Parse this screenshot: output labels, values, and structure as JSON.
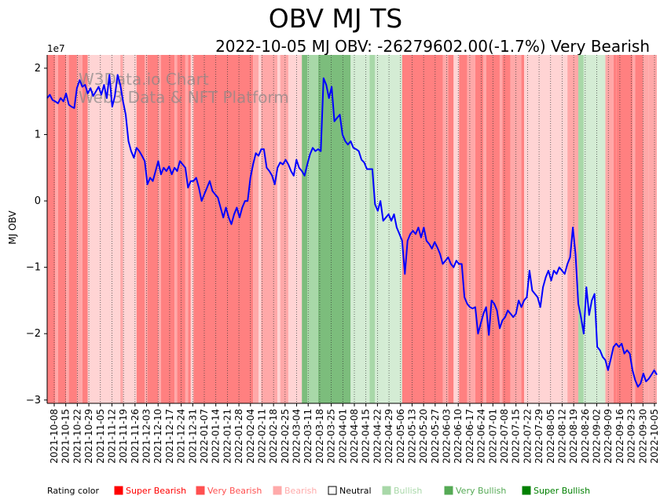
{
  "chart_data": {
    "type": "line",
    "title": "OBV MJ TS",
    "subtitle": "2022-10-05 MJ OBV: -26279602.00(-1.7%) Very Bearish",
    "ylabel": "MJ OBV",
    "y_exponent_label": "1e7",
    "ylim": [
      -3.05,
      2.2
    ],
    "yticks": [
      -3,
      -2,
      -1,
      0,
      1,
      2
    ],
    "watermark": [
      "W3Data.io Chart",
      "Web3 Data & NFT Platform"
    ],
    "x_tick_labels": [
      "2021-10-08",
      "2021-10-15",
      "2021-10-22",
      "2021-10-29",
      "2021-11-05",
      "2021-11-12",
      "2021-11-19",
      "2021-11-26",
      "2021-12-03",
      "2021-12-10",
      "2021-12-17",
      "2021-12-24",
      "2021-12-31",
      "2022-01-07",
      "2022-01-14",
      "2022-01-21",
      "2022-01-28",
      "2022-02-04",
      "2022-02-11",
      "2022-02-18",
      "2022-02-25",
      "2022-03-04",
      "2022-03-11",
      "2022-03-18",
      "2022-03-25",
      "2022-04-01",
      "2022-04-08",
      "2022-04-15",
      "2022-04-22",
      "2022-04-29",
      "2022-05-06",
      "2022-05-13",
      "2022-05-20",
      "2022-05-27",
      "2022-06-03",
      "2022-06-10",
      "2022-06-17",
      "2022-06-24",
      "2022-07-01",
      "2022-07-08",
      "2022-07-15",
      "2022-07-22",
      "2022-07-29",
      "2022-08-05",
      "2022-08-12",
      "2022-08-19",
      "2022-08-26",
      "2022-09-02",
      "2022-09-09",
      "2022-09-16",
      "2022-09-23",
      "2022-09-30",
      "2022-10-05"
    ],
    "series": [
      {
        "name": "MJ OBV (x1e7)",
        "color": "#0000ff",
        "points": [
          [
            0,
            1.55
          ],
          [
            0.5,
            1.6
          ],
          [
            1,
            1.52
          ],
          [
            1.5,
            1.5
          ],
          [
            2,
            1.47
          ],
          [
            2.5,
            1.55
          ],
          [
            3,
            1.5
          ],
          [
            3.5,
            1.62
          ],
          [
            4,
            1.45
          ],
          [
            4.5,
            1.42
          ],
          [
            5,
            1.4
          ],
          [
            5.5,
            1.7
          ],
          [
            6,
            1.82
          ],
          [
            6.5,
            1.72
          ],
          [
            7,
            1.75
          ],
          [
            7.5,
            1.62
          ],
          [
            8,
            1.7
          ],
          [
            8.5,
            1.58
          ],
          [
            9,
            1.65
          ],
          [
            9.5,
            1.72
          ],
          [
            10,
            1.6
          ],
          [
            10.5,
            1.75
          ],
          [
            11,
            1.55
          ],
          [
            11.5,
            1.9
          ],
          [
            12,
            1.42
          ],
          [
            12.5,
            1.58
          ],
          [
            13,
            1.9
          ],
          [
            13.5,
            1.75
          ],
          [
            14,
            1.5
          ],
          [
            14.5,
            1.3
          ],
          [
            15,
            0.9
          ],
          [
            15.5,
            0.75
          ],
          [
            16,
            0.65
          ],
          [
            16.5,
            0.8
          ],
          [
            17,
            0.75
          ],
          [
            17.5,
            0.68
          ],
          [
            18,
            0.6
          ],
          [
            18.5,
            0.25
          ],
          [
            19,
            0.35
          ],
          [
            19.5,
            0.3
          ],
          [
            20,
            0.45
          ],
          [
            20.5,
            0.6
          ],
          [
            21,
            0.4
          ],
          [
            21.5,
            0.5
          ],
          [
            22,
            0.45
          ],
          [
            22.5,
            0.52
          ],
          [
            23,
            0.4
          ],
          [
            23.5,
            0.5
          ],
          [
            24,
            0.45
          ],
          [
            24.5,
            0.6
          ],
          [
            25,
            0.55
          ],
          [
            25.5,
            0.5
          ],
          [
            26,
            0.2
          ],
          [
            26.5,
            0.3
          ],
          [
            27,
            0.3
          ],
          [
            27.5,
            0.35
          ],
          [
            28,
            0.2
          ],
          [
            28.5,
            0.0
          ],
          [
            29,
            0.1
          ],
          [
            29.5,
            0.2
          ],
          [
            30,
            0.3
          ],
          [
            30.5,
            0.15
          ],
          [
            31,
            0.1
          ],
          [
            31.5,
            0.05
          ],
          [
            32,
            -0.1
          ],
          [
            32.5,
            -0.25
          ],
          [
            33,
            -0.1
          ],
          [
            33.5,
            -0.25
          ],
          [
            34,
            -0.35
          ],
          [
            34.5,
            -0.2
          ],
          [
            35,
            -0.1
          ],
          [
            35.5,
            -0.25
          ],
          [
            36,
            -0.1
          ],
          [
            36.5,
            0.0
          ],
          [
            37,
            0.0
          ],
          [
            37.5,
            0.35
          ],
          [
            38,
            0.55
          ],
          [
            38.5,
            0.72
          ],
          [
            39,
            0.68
          ],
          [
            39.5,
            0.78
          ],
          [
            40,
            0.78
          ],
          [
            40.5,
            0.5
          ],
          [
            41,
            0.45
          ],
          [
            41.5,
            0.38
          ],
          [
            42,
            0.25
          ],
          [
            42.5,
            0.5
          ],
          [
            43,
            0.58
          ],
          [
            43.5,
            0.55
          ],
          [
            44,
            0.62
          ],
          [
            44.5,
            0.55
          ],
          [
            45,
            0.45
          ],
          [
            45.5,
            0.38
          ],
          [
            46,
            0.62
          ],
          [
            46.5,
            0.5
          ],
          [
            47,
            0.45
          ],
          [
            47.5,
            0.38
          ],
          [
            48,
            0.55
          ],
          [
            48.5,
            0.7
          ],
          [
            49,
            0.8
          ],
          [
            49.5,
            0.75
          ],
          [
            50,
            0.78
          ],
          [
            50.5,
            0.75
          ],
          [
            51,
            1.85
          ],
          [
            51.5,
            1.75
          ],
          [
            52,
            1.55
          ],
          [
            52.5,
            1.72
          ],
          [
            53,
            1.2
          ],
          [
            53.5,
            1.25
          ],
          [
            54,
            1.3
          ],
          [
            54.5,
            1.0
          ],
          [
            55,
            0.9
          ],
          [
            55.5,
            0.85
          ],
          [
            56,
            0.9
          ],
          [
            56.5,
            0.8
          ],
          [
            57,
            0.78
          ],
          [
            57.5,
            0.75
          ],
          [
            58,
            0.62
          ],
          [
            58.5,
            0.58
          ],
          [
            59,
            0.48
          ],
          [
            59.5,
            0.48
          ],
          [
            60,
            0.48
          ],
          [
            60.5,
            -0.05
          ],
          [
            61,
            -0.15
          ],
          [
            61.5,
            0.0
          ],
          [
            62,
            -0.3
          ],
          [
            62.5,
            -0.25
          ],
          [
            63,
            -0.2
          ],
          [
            63.5,
            -0.3
          ],
          [
            64,
            -0.2
          ],
          [
            64.5,
            -0.4
          ],
          [
            65,
            -0.5
          ],
          [
            65.5,
            -0.6
          ],
          [
            66,
            -1.1
          ],
          [
            66.5,
            -0.6
          ],
          [
            67,
            -0.5
          ],
          [
            67.5,
            -0.45
          ],
          [
            68,
            -0.5
          ],
          [
            68.5,
            -0.4
          ],
          [
            69,
            -0.55
          ],
          [
            69.5,
            -0.4
          ],
          [
            70,
            -0.6
          ],
          [
            70.5,
            -0.65
          ],
          [
            71,
            -0.72
          ],
          [
            71.5,
            -0.62
          ],
          [
            72,
            -0.7
          ],
          [
            72.5,
            -0.8
          ],
          [
            73,
            -0.95
          ],
          [
            73.5,
            -0.9
          ],
          [
            74,
            -0.85
          ],
          [
            74.5,
            -0.95
          ],
          [
            75,
            -1.0
          ],
          [
            75.5,
            -0.9
          ],
          [
            76,
            -0.95
          ],
          [
            76.5,
            -0.95
          ],
          [
            77,
            -1.45
          ],
          [
            77.5,
            -1.55
          ],
          [
            78,
            -1.6
          ],
          [
            78.5,
            -1.62
          ],
          [
            79,
            -1.6
          ],
          [
            79.5,
            -2.0
          ],
          [
            80,
            -1.85
          ],
          [
            80.5,
            -1.7
          ],
          [
            81,
            -1.6
          ],
          [
            81.5,
            -2.02
          ],
          [
            82,
            -1.5
          ],
          [
            82.5,
            -1.55
          ],
          [
            83,
            -1.65
          ],
          [
            83.5,
            -1.92
          ],
          [
            84,
            -1.8
          ],
          [
            84.5,
            -1.75
          ],
          [
            85,
            -1.65
          ],
          [
            85.5,
            -1.7
          ],
          [
            86,
            -1.75
          ],
          [
            86.5,
            -1.7
          ],
          [
            87,
            -1.5
          ],
          [
            87.5,
            -1.6
          ],
          [
            88,
            -1.5
          ],
          [
            88.5,
            -1.45
          ],
          [
            89,
            -1.05
          ],
          [
            89.5,
            -1.35
          ],
          [
            90,
            -1.4
          ],
          [
            90.5,
            -1.45
          ],
          [
            91,
            -1.6
          ],
          [
            91.5,
            -1.3
          ],
          [
            92,
            -1.15
          ],
          [
            92.5,
            -1.05
          ],
          [
            93,
            -1.2
          ],
          [
            93.5,
            -1.05
          ],
          [
            94,
            -1.1
          ],
          [
            94.5,
            -1.0
          ],
          [
            95,
            -1.05
          ],
          [
            95.5,
            -1.1
          ],
          [
            96,
            -0.95
          ],
          [
            96.5,
            -0.85
          ],
          [
            97,
            -0.4
          ],
          [
            97.5,
            -0.8
          ],
          [
            98,
            -1.55
          ],
          [
            98.5,
            -1.75
          ],
          [
            99,
            -2.0
          ],
          [
            99.5,
            -1.3
          ],
          [
            100,
            -1.72
          ],
          [
            100.5,
            -1.5
          ],
          [
            101,
            -1.4
          ],
          [
            101.5,
            -2.2
          ],
          [
            102,
            -2.25
          ],
          [
            102.5,
            -2.35
          ],
          [
            103,
            -2.4
          ],
          [
            103.5,
            -2.55
          ],
          [
            104,
            -2.38
          ],
          [
            104.5,
            -2.2
          ],
          [
            105,
            -2.15
          ],
          [
            105.5,
            -2.2
          ],
          [
            106,
            -2.15
          ],
          [
            106.5,
            -2.3
          ],
          [
            107,
            -2.25
          ],
          [
            107.5,
            -2.3
          ],
          [
            108,
            -2.55
          ],
          [
            108.5,
            -2.7
          ],
          [
            109,
            -2.8
          ],
          [
            109.5,
            -2.75
          ],
          [
            110,
            -2.6
          ],
          [
            110.5,
            -2.72
          ],
          [
            111,
            -2.68
          ],
          [
            111.5,
            -2.62
          ],
          [
            112,
            -2.55
          ],
          [
            112.5,
            -2.62
          ]
        ]
      }
    ],
    "x_domain": [
      0,
      112.5
    ],
    "rating_bands": [
      [
        0,
        1.5,
        "very_bearish"
      ],
      [
        1.5,
        2,
        "bearish"
      ],
      [
        2,
        3.5,
        "very_bearish"
      ],
      [
        3.5,
        4,
        "bearish"
      ],
      [
        4,
        5.5,
        "very_bearish"
      ],
      [
        5.5,
        6.5,
        "bearish"
      ],
      [
        6.5,
        7.5,
        "very_bearish"
      ],
      [
        7.5,
        13.5,
        "neutral_bear"
      ],
      [
        13.5,
        14,
        "bearish"
      ],
      [
        14,
        16.5,
        "neutral_bear"
      ],
      [
        16.5,
        18,
        "very_bearish"
      ],
      [
        18,
        18.5,
        "bearish"
      ],
      [
        18.5,
        20.5,
        "very_bearish"
      ],
      [
        20.5,
        21,
        "bearish"
      ],
      [
        21,
        23.5,
        "very_bearish"
      ],
      [
        23.5,
        24,
        "bearish"
      ],
      [
        24,
        25.5,
        "very_bearish"
      ],
      [
        25.5,
        26,
        "bearish"
      ],
      [
        26,
        26.5,
        "very_bearish"
      ],
      [
        26.5,
        27,
        "neutral_bear"
      ],
      [
        27,
        38,
        "very_bearish"
      ],
      [
        38,
        39,
        "bearish"
      ],
      [
        39,
        39.5,
        "neutral_bear"
      ],
      [
        39.5,
        42.5,
        "bearish"
      ],
      [
        42.5,
        43,
        "neutral_bear"
      ],
      [
        43,
        44.5,
        "bearish"
      ],
      [
        44.5,
        47,
        "neutral_bear"
      ],
      [
        47,
        48,
        "bullish_strong"
      ],
      [
        48,
        50,
        "bullish"
      ],
      [
        50,
        56,
        "bullish_strong"
      ],
      [
        56,
        59.5,
        "bullish_light"
      ],
      [
        59.5,
        60.5,
        "bullish"
      ],
      [
        60.5,
        62.5,
        "bullish_light"
      ],
      [
        62.5,
        65.5,
        "bullish_light"
      ],
      [
        65.5,
        73,
        "very_bearish"
      ],
      [
        73,
        74,
        "bearish"
      ],
      [
        74,
        75,
        "very_bearish"
      ],
      [
        75,
        76,
        "neutral_bear"
      ],
      [
        76,
        77.5,
        "very_bearish"
      ],
      [
        77.5,
        79,
        "bearish"
      ],
      [
        79,
        80.5,
        "very_bearish"
      ],
      [
        80.5,
        81,
        "bearish"
      ],
      [
        81,
        83.5,
        "very_bearish"
      ],
      [
        83.5,
        84,
        "bearish"
      ],
      [
        84,
        85.5,
        "very_bearish"
      ],
      [
        85.5,
        87.5,
        "bearish"
      ],
      [
        87.5,
        88,
        "very_bearish"
      ],
      [
        88,
        96,
        "neutral_bear"
      ],
      [
        96,
        98,
        "bearish"
      ],
      [
        98,
        99,
        "bullish"
      ],
      [
        99,
        102,
        "bullish_light"
      ],
      [
        102,
        103,
        "bullish_light"
      ],
      [
        103,
        104.5,
        "bearish"
      ],
      [
        104.5,
        105,
        "very_bearish"
      ],
      [
        105,
        108,
        "very_bearish"
      ],
      [
        108,
        108.5,
        "bearish"
      ],
      [
        108.5,
        110,
        "very_bearish"
      ],
      [
        110,
        111,
        "bearish"
      ],
      [
        111,
        112.5,
        "bearish"
      ]
    ],
    "band_colors": {
      "very_bearish": "#ff8080",
      "bearish": "#ffa8a8",
      "neutral_bear": "#ffd4d4",
      "bullish_light": "#d4ecd4",
      "bullish": "#a8d8a8",
      "bullish_strong": "#7cbd7c"
    },
    "legend": {
      "label": "Rating color",
      "items": [
        {
          "text": "Super Bearish",
          "color": "#ff0000"
        },
        {
          "text": "Very Bearish",
          "color": "#ff5050"
        },
        {
          "text": "Bearish",
          "color": "#ffaaaa"
        },
        {
          "text": "Neutral",
          "color": "#ffffff",
          "text_color": "#000000"
        },
        {
          "text": "Bullish",
          "color": "#a8d8a8"
        },
        {
          "text": "Very Bullish",
          "color": "#55aa55"
        },
        {
          "text": "Super Bullish",
          "color": "#008000"
        }
      ]
    }
  }
}
